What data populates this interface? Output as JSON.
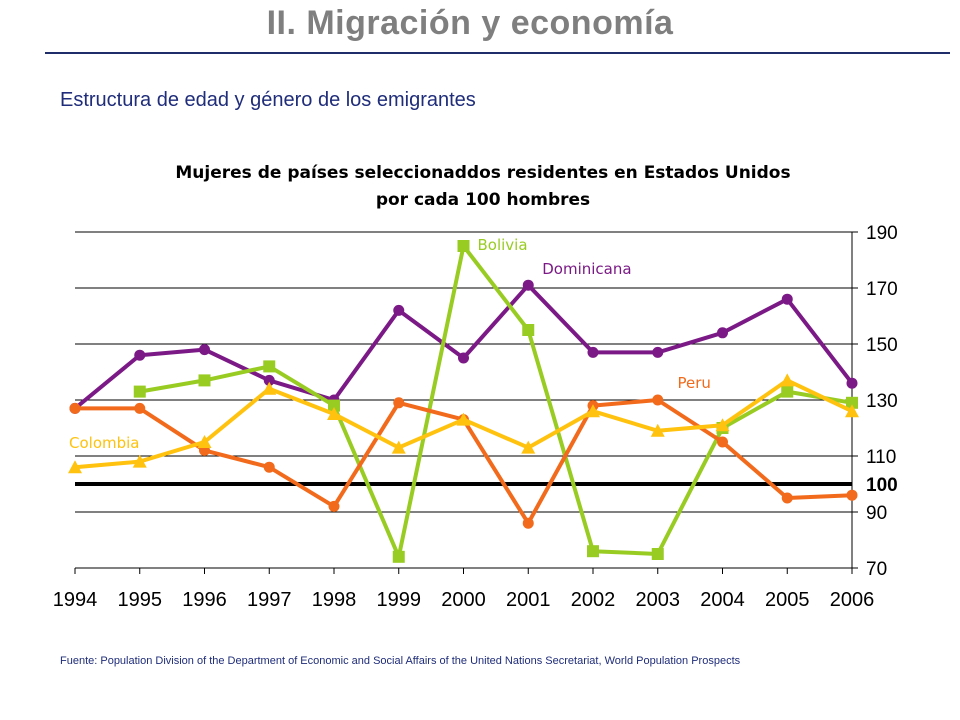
{
  "slide": {
    "title": "II. Migración y economía",
    "subtitle": "Estructura de edad y género de los emigrantes",
    "source": "Fuente: Population Division of the Department of Economic and Social Affairs of the United Nations Secretariat,  World Population Prospects"
  },
  "chart_data": {
    "type": "line",
    "title_line1": "Mujeres de países seleccionaddos residentes en Estados Unidos",
    "title_line2": "por cada 100 hombres",
    "x": [
      1994,
      1995,
      1996,
      1997,
      1998,
      1999,
      2000,
      2001,
      2002,
      2003,
      2004,
      2005,
      2006
    ],
    "ylim": [
      70,
      190
    ],
    "yticks": [
      70,
      90,
      110,
      130,
      150,
      170,
      190
    ],
    "reference_line": {
      "value": 100,
      "label": "100",
      "color": "#000000"
    },
    "grid": true,
    "series": [
      {
        "name": "Dominicana",
        "color": "#7b1a86",
        "marker": "circle",
        "values": [
          127,
          146,
          148,
          137,
          130,
          162,
          145,
          171,
          147,
          147,
          154,
          166,
          136
        ]
      },
      {
        "name": "Bolivia",
        "color": "#99cc22",
        "marker": "square",
        "values": [
          null,
          133,
          137,
          142,
          128,
          74,
          185,
          155,
          76,
          75,
          120,
          133,
          129
        ]
      },
      {
        "name": "Peru",
        "color": "#f26a1b",
        "marker": "circle",
        "values": [
          127,
          127,
          112,
          106,
          92,
          129,
          123,
          86,
          128,
          130,
          115,
          95,
          96
        ]
      },
      {
        "name": "Colombia",
        "color": "#ffc20e",
        "marker": "triangle",
        "values": [
          106,
          108,
          115,
          134,
          125,
          113,
          123,
          113,
          126,
          119,
          121,
          137,
          126
        ]
      }
    ],
    "label_colors": {
      "Dominicana": "#7b1a86",
      "Bolivia": "#99cc22",
      "Peru": "#f26a1b",
      "Colombia": "#ffc20e"
    }
  }
}
